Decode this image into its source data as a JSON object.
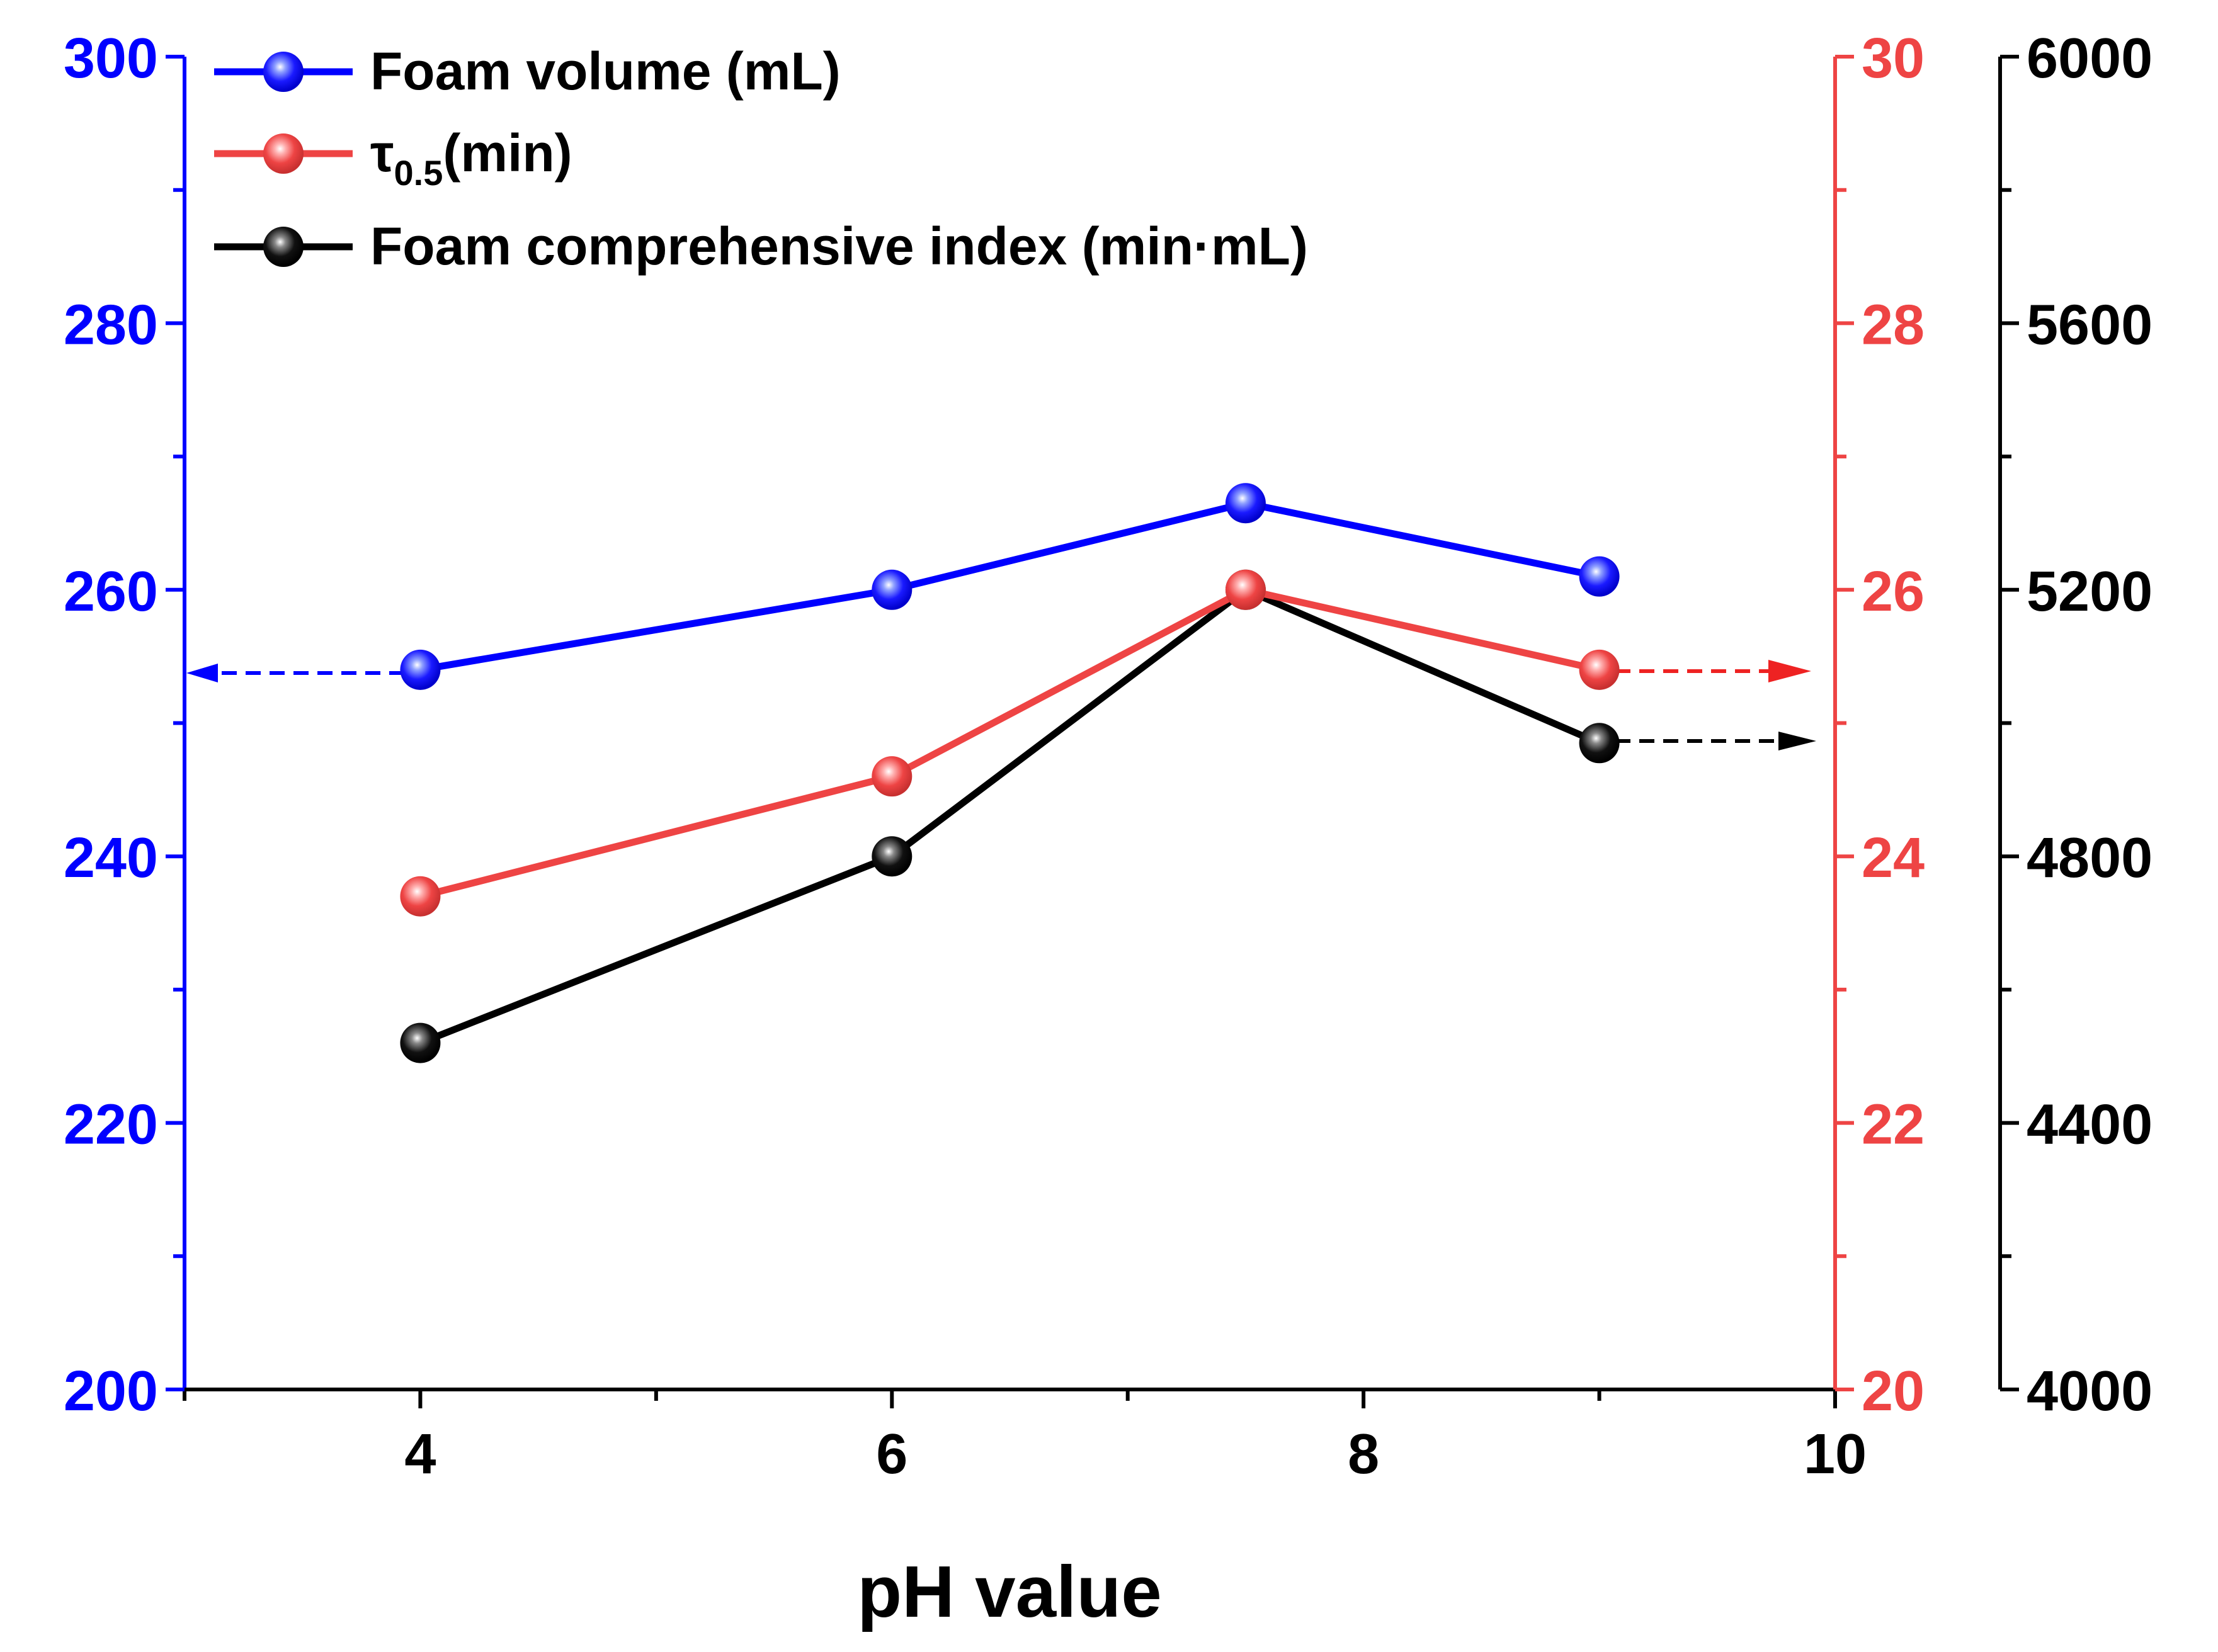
{
  "chart_data": {
    "type": "line",
    "x_axis": {
      "label": "pH value",
      "range": [
        3,
        10
      ],
      "major_ticks": [
        4,
        6,
        8,
        10
      ],
      "minor_ticks": [
        3,
        5,
        7,
        9
      ],
      "tick_labels": [
        "4",
        "6",
        "8",
        "10"
      ]
    },
    "x": [
      4,
      6,
      7.5,
      9
    ],
    "axes": {
      "left": {
        "range": [
          200,
          300
        ],
        "major_ticks": [
          200,
          220,
          240,
          260,
          280,
          300
        ],
        "tick_labels": [
          "200",
          "220",
          "240",
          "260",
          "280",
          "300"
        ],
        "color": "#0000FF"
      },
      "right_inner": {
        "range": [
          20,
          30
        ],
        "major_ticks": [
          20,
          22,
          24,
          26,
          28,
          30
        ],
        "tick_labels": [
          "20",
          "22",
          "24",
          "26",
          "28",
          "30"
        ],
        "color": "#EE4444"
      },
      "right_outer": {
        "range": [
          4000,
          6000
        ],
        "major_ticks": [
          4000,
          4400,
          4800,
          5200,
          5600,
          6000
        ],
        "tick_labels": [
          "4000",
          "4400",
          "4800",
          "5200",
          "5600",
          "6000"
        ],
        "color": "#000000"
      }
    },
    "series": [
      {
        "name": "Foam volume (mL)",
        "axis": "left",
        "color": "#0000FF",
        "values": [
          254,
          260,
          266.5,
          261
        ]
      },
      {
        "name": "τ0.5(min)",
        "axis": "right_inner",
        "color": "#EE4444",
        "values": [
          23.7,
          24.6,
          26.0,
          25.4
        ]
      },
      {
        "name": "Foam comprehensive index (min·mL)",
        "axis": "right_outer",
        "color": "#000000",
        "values": [
          4520,
          4800,
          5200,
          4970
        ]
      }
    ],
    "legend": {
      "position": "top-left",
      "entries": [
        {
          "label": "Foam volume (mL)"
        },
        {
          "label_main": "τ",
          "label_sub": "0.5",
          "label_rest": "(min)"
        },
        {
          "label": "Foam comprehensive index (min·mL)"
        }
      ]
    }
  }
}
